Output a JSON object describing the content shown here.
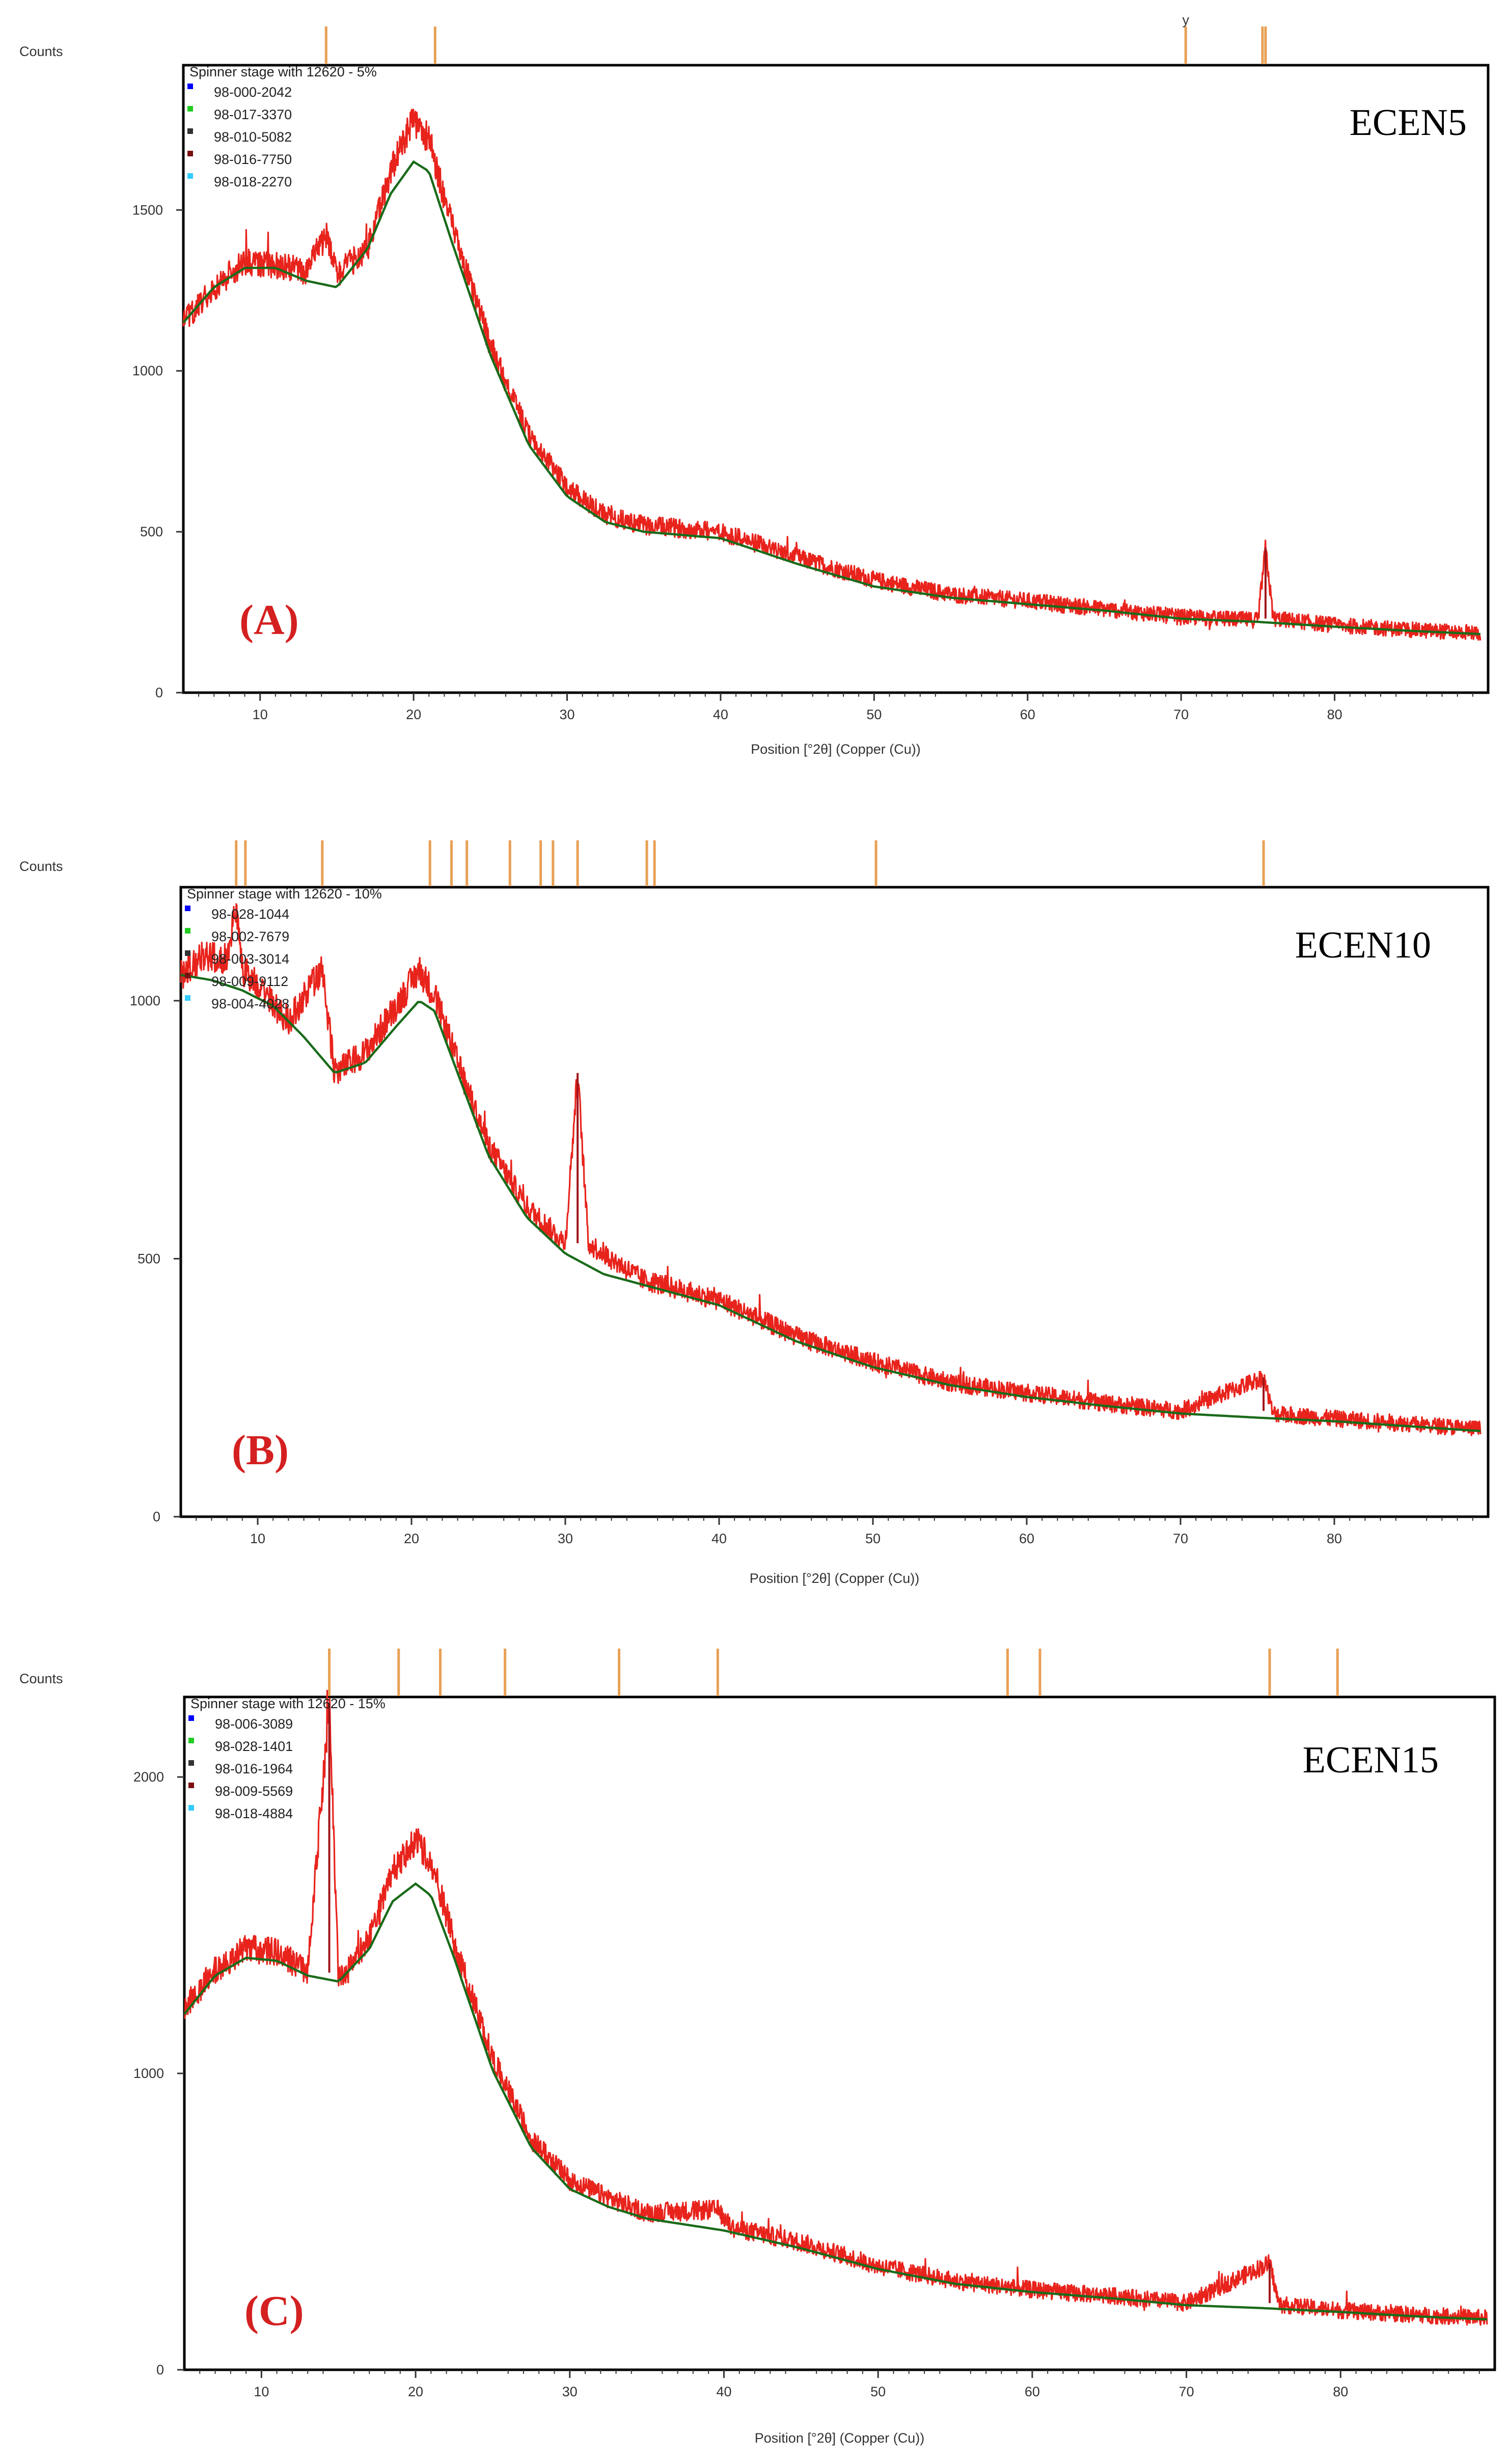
{
  "colors": {
    "observed": "#e8231c",
    "observed_dark": "#a0141a",
    "fit": "#1a6b1a",
    "ref_line": "#e8a055",
    "axis": "#333333",
    "panel_label": "#d42020",
    "legend_marker_1": "#0000ff",
    "legend_marker_2": "#22cc22",
    "legend_marker_3": "#333333",
    "legend_marker_4": "#7a1010",
    "legend_marker_5": "#33ccff"
  },
  "chart_data": [
    {
      "type": "line",
      "panel_label": "(A)",
      "sample_label": "ECEN5",
      "title": "Spinner stage with 12620 - 5%",
      "ylabel": "Counts",
      "xlabel": "Position [°2θ] (Copper (Cu))",
      "xlim": [
        5,
        90
      ],
      "ylim": [
        0,
        1950
      ],
      "xticks": [
        10,
        20,
        30,
        40,
        50,
        60,
        70,
        80
      ],
      "yticks": [
        0,
        500,
        1000,
        1500
      ],
      "legend": [
        "98-000-2042",
        "98-017-3370",
        "98-010-5082",
        "98-016-7750",
        "98-018-2270"
      ],
      "reference_lines": [
        14.3,
        21.4,
        70.3,
        75.3,
        75.5
      ],
      "reference_marker": {
        "x": 70.3,
        "text": "y"
      },
      "series": [
        {
          "name": "observed",
          "x": [
            5,
            7,
            9,
            11,
            13,
            14.3,
            15,
            17,
            18.5,
            20,
            21,
            22.5,
            25,
            27.5,
            30,
            32.5,
            35,
            40,
            45,
            50,
            55,
            60,
            65,
            70,
            75,
            75.5,
            76,
            80,
            85,
            89.5
          ],
          "y": [
            1150,
            1260,
            1340,
            1330,
            1310,
            1420,
            1300,
            1380,
            1620,
            1780,
            1720,
            1450,
            1080,
            800,
            640,
            550,
            520,
            500,
            420,
            350,
            305,
            285,
            260,
            235,
            225,
            450,
            230,
            210,
            195,
            185
          ]
        },
        {
          "name": "fit",
          "x": [
            5,
            7,
            9,
            11,
            13,
            15,
            17,
            18.5,
            20,
            21,
            22.5,
            25,
            27.5,
            30,
            32.5,
            35,
            40,
            45,
            50,
            55,
            60,
            65,
            70,
            75,
            80,
            85,
            89.5
          ],
          "y": [
            1150,
            1260,
            1320,
            1320,
            1280,
            1260,
            1380,
            1550,
            1650,
            1620,
            1400,
            1050,
            770,
            610,
            530,
            500,
            480,
            400,
            330,
            295,
            275,
            255,
            230,
            220,
            205,
            192,
            182
          ]
        }
      ]
    },
    {
      "type": "line",
      "panel_label": "(B)",
      "sample_label": "ECEN10",
      "title": "Spinner stage with 12620 - 10%",
      "ylabel": "Counts",
      "xlabel": "Position [°2θ] (Copper (Cu))",
      "xlim": [
        5,
        90
      ],
      "ylim": [
        0,
        1220
      ],
      "xticks": [
        10,
        20,
        30,
        40,
        50,
        60,
        70,
        80
      ],
      "yticks": [
        0,
        500,
        1000
      ],
      "legend": [
        "98-028-1044",
        "98-002-7679",
        "98-003-3014",
        "98-009-9112",
        "98-004-4028"
      ],
      "reference_lines": [
        8.6,
        9.2,
        14.2,
        21.2,
        22.6,
        23.6,
        26.4,
        28.4,
        29.2,
        30.8,
        35.3,
        35.8,
        50.2,
        75.4
      ],
      "series": [
        {
          "name": "observed",
          "x": [
            5,
            6.5,
            8,
            8.6,
            9,
            10,
            12,
            14.2,
            15,
            17,
            19,
            20.5,
            21.5,
            23,
            25,
            27.5,
            30,
            30.8,
            31.5,
            35,
            40,
            45,
            50,
            55,
            60,
            65,
            70,
            75.4,
            76,
            80,
            85,
            89.5
          ],
          "y": [
            1050,
            1090,
            1080,
            1180,
            1060,
            1030,
            960,
            1060,
            860,
            900,
            990,
            1060,
            1010,
            880,
            720,
            600,
            530,
            860,
            530,
            460,
            420,
            350,
            300,
            260,
            240,
            220,
            205,
            270,
            200,
            190,
            180,
            170
          ]
        },
        {
          "name": "fit",
          "x": [
            5,
            7,
            9,
            11,
            13,
            15,
            17,
            19,
            20.5,
            21.5,
            23,
            25,
            27.5,
            30,
            32.5,
            35,
            40,
            45,
            50,
            55,
            60,
            65,
            70,
            75,
            80,
            85,
            89.5
          ],
          "y": [
            1050,
            1040,
            1020,
            990,
            930,
            860,
            880,
            950,
            1000,
            980,
            860,
            700,
            580,
            510,
            470,
            450,
            410,
            340,
            290,
            255,
            232,
            215,
            200,
            192,
            185,
            175,
            166
          ]
        }
      ]
    },
    {
      "type": "line",
      "panel_label": "(C)",
      "sample_label": "ECEN15",
      "title": "Spinner stage with 12620 - 15%",
      "ylabel": "Counts",
      "xlabel": "Position [°2θ] (Copper (Cu))",
      "xlim": [
        5,
        90
      ],
      "ylim": [
        0,
        2270
      ],
      "xticks": [
        10,
        20,
        30,
        40,
        50,
        60,
        70,
        80
      ],
      "yticks": [
        0,
        1000,
        2000
      ],
      "legend": [
        "98-006-3089",
        "98-028-1401",
        "98-016-1964",
        "98-009-5569",
        "98-018-4884"
      ],
      "reference_lines": [
        14.4,
        18.9,
        21.6,
        25.8,
        33.2,
        39.6,
        58.4,
        60.5,
        75.4,
        79.8
      ],
      "series": [
        {
          "name": "observed",
          "x": [
            5,
            7,
            9,
            11,
            13,
            14.4,
            15,
            17,
            18.5,
            20,
            21,
            22.5,
            25,
            27.5,
            30,
            32.5,
            35,
            39.6,
            40.5,
            45,
            50,
            55,
            60,
            65,
            70,
            75.4,
            76,
            80,
            85,
            89.5
          ],
          "y": [
            1220,
            1350,
            1420,
            1410,
            1340,
            2250,
            1320,
            1450,
            1680,
            1790,
            1720,
            1440,
            1050,
            780,
            640,
            580,
            530,
            540,
            480,
            430,
            350,
            300,
            270,
            250,
            225,
            360,
            220,
            200,
            185,
            175
          ]
        },
        {
          "name": "fit",
          "x": [
            5,
            7,
            9,
            11,
            13,
            15,
            17,
            18.5,
            20,
            21,
            22.5,
            25,
            27.5,
            30,
            32.5,
            35,
            40,
            45,
            50,
            55,
            60,
            65,
            70,
            75,
            80,
            85,
            89.5
          ],
          "y": [
            1200,
            1330,
            1390,
            1380,
            1330,
            1310,
            1420,
            1580,
            1640,
            1600,
            1390,
            1010,
            750,
            610,
            550,
            510,
            470,
            410,
            340,
            290,
            262,
            242,
            218,
            208,
            195,
            180,
            170
          ]
        }
      ]
    }
  ]
}
